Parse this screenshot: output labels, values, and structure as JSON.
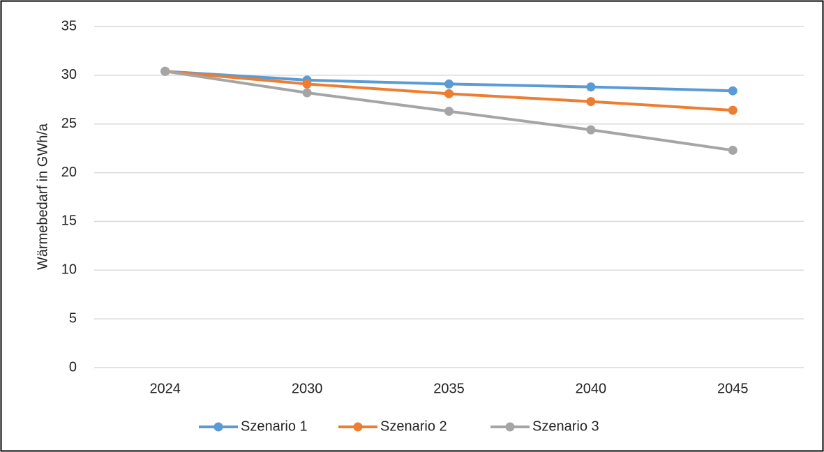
{
  "chart_data": {
    "type": "line",
    "ylabel": "Wärmebedarf in GWh/a",
    "categories": [
      "2024",
      "2030",
      "2035",
      "2040",
      "2045"
    ],
    "series": [
      {
        "name": "Szenario 1",
        "color": "#5b9bd5",
        "values": [
          30.4,
          29.5,
          29.1,
          28.8,
          28.4
        ]
      },
      {
        "name": "Szenario 2",
        "color": "#ed7d31",
        "values": [
          30.4,
          29.1,
          28.1,
          27.3,
          26.4
        ]
      },
      {
        "name": "Szenario 3",
        "color": "#a5a5a5",
        "values": [
          30.4,
          28.2,
          26.3,
          24.4,
          22.3
        ]
      }
    ],
    "ylim": [
      0,
      35
    ],
    "yticks": [
      0,
      5,
      10,
      15,
      20,
      25,
      30,
      35
    ],
    "grid": true,
    "legend": "bottom"
  }
}
